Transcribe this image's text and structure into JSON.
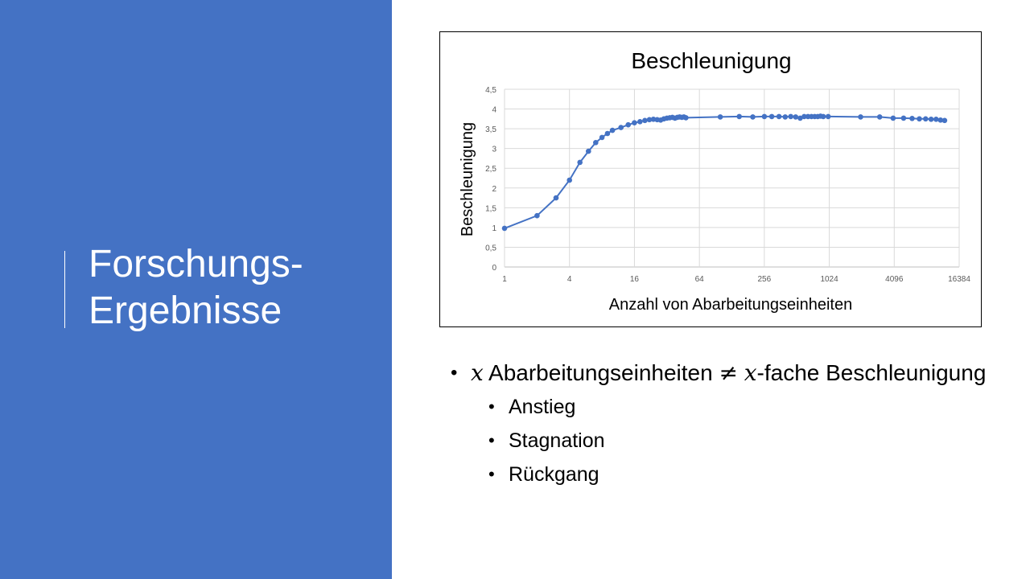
{
  "slide": {
    "title_line1": "Forschungs-",
    "title_line2": "Ergebnisse",
    "accent_color": "#4472c4"
  },
  "bullets": {
    "main": {
      "var": "x",
      "text1": " Abarbeitungseinheiten ",
      "neq": "≠",
      "var2": "x",
      "text2": "-fache Beschleunigung"
    },
    "sub": [
      "Anstieg",
      "Stagnation",
      "Rückgang"
    ]
  },
  "chart_data": {
    "type": "scatter",
    "title": "Beschleunigung",
    "xlabel": "Anzahl von Abarbeitungseinheiten",
    "ylabel": "Beschleunigung",
    "x_scale": "log2",
    "xlim": [
      1,
      16384
    ],
    "ylim": [
      0,
      4.5
    ],
    "x_ticks": [
      "1",
      "4",
      "16",
      "64",
      "256",
      "1024",
      "4096",
      "16384"
    ],
    "y_ticks": [
      "0",
      "0,5",
      "1",
      "1,5",
      "2",
      "2,5",
      "3",
      "3,5",
      "4",
      "4,5"
    ],
    "grid": true,
    "legend": "none",
    "series_color": "#4472c4",
    "series": [
      {
        "x": [
          1,
          2,
          3,
          4,
          5,
          6,
          7,
          8,
          9,
          10,
          12,
          14,
          16,
          18,
          20,
          22,
          24,
          26,
          28,
          30,
          32,
          34,
          36,
          38,
          40,
          42,
          44,
          46,
          48,
          100,
          150,
          200,
          256,
          300,
          350,
          400,
          450,
          500,
          550,
          600,
          650,
          700,
          750,
          800,
          850,
          900,
          1000,
          2000,
          3000,
          4000,
          5000,
          6000,
          7000,
          8000,
          9000,
          10000,
          11000,
          12000
        ],
        "y": [
          0.98,
          1.3,
          1.75,
          2.2,
          2.65,
          2.93,
          3.15,
          3.28,
          3.38,
          3.46,
          3.53,
          3.6,
          3.65,
          3.68,
          3.71,
          3.73,
          3.74,
          3.73,
          3.72,
          3.75,
          3.77,
          3.78,
          3.79,
          3.77,
          3.79,
          3.8,
          3.79,
          3.8,
          3.78,
          3.8,
          3.81,
          3.8,
          3.81,
          3.81,
          3.81,
          3.8,
          3.81,
          3.8,
          3.77,
          3.81,
          3.81,
          3.81,
          3.81,
          3.81,
          3.82,
          3.81,
          3.81,
          3.8,
          3.8,
          3.77,
          3.77,
          3.76,
          3.75,
          3.75,
          3.74,
          3.74,
          3.72,
          3.71
        ]
      }
    ]
  }
}
